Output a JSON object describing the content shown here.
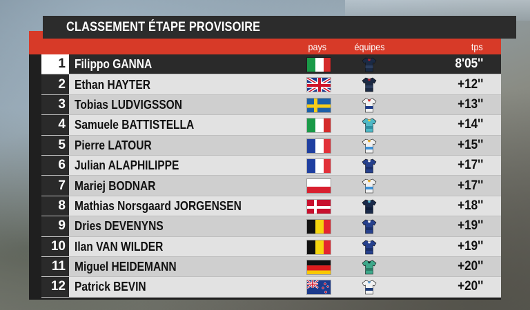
{
  "title": "CLASSEMENT ÉTAPE PROVISOIRE",
  "headers": {
    "pays": "pays",
    "equipes": "équipes",
    "tps": "tps"
  },
  "riders": [
    {
      "rank": "1",
      "name": "Filippo GANNA",
      "flag": "italy",
      "jersey": "ineos",
      "time": "8'05''"
    },
    {
      "rank": "2",
      "name": "Ethan HAYTER",
      "flag": "uk",
      "jersey": "ineos",
      "time": "+12''"
    },
    {
      "rank": "3",
      "name": "Tobias LUDVIGSSON",
      "flag": "sweden",
      "jersey": "groupama",
      "time": "+13''"
    },
    {
      "rank": "4",
      "name": "Samuele BATTISTELLA",
      "flag": "italy",
      "jersey": "astana",
      "time": "+14''"
    },
    {
      "rank": "5",
      "name": "Pierre LATOUR",
      "flag": "france",
      "jersey": "totalenergies",
      "time": "+15''"
    },
    {
      "rank": "6",
      "name": "Julian ALAPHILIPPE",
      "flag": "france",
      "jersey": "quickstep",
      "time": "+17''"
    },
    {
      "rank": "7",
      "name": "Mariej BODNAR",
      "flag": "poland",
      "jersey": "totalenergies",
      "time": "+17''"
    },
    {
      "rank": "8",
      "name": "Mathias Norsgaard JORGENSEN",
      "flag": "denmark",
      "jersey": "movistar",
      "time": "+18''"
    },
    {
      "rank": "9",
      "name": "Dries DEVENYNS",
      "flag": "belgium",
      "jersey": "quickstep",
      "time": "+19''"
    },
    {
      "rank": "10",
      "name": "Ilan VAN WILDER",
      "flag": "belgium",
      "jersey": "quickstep",
      "time": "+19''"
    },
    {
      "rank": "11",
      "name": "Miguel HEIDEMANN",
      "flag": "germany",
      "jersey": "bora",
      "time": "+20''"
    },
    {
      "rank": "12",
      "name": "Patrick BEVIN",
      "flag": "newzealand",
      "jersey": "israel",
      "time": "+20''"
    }
  ],
  "colors": {
    "accent": "#d73a28",
    "panel": "#2c2c2c",
    "row_light": "#e2e2e2",
    "row_dark": "#cfcfcf"
  }
}
